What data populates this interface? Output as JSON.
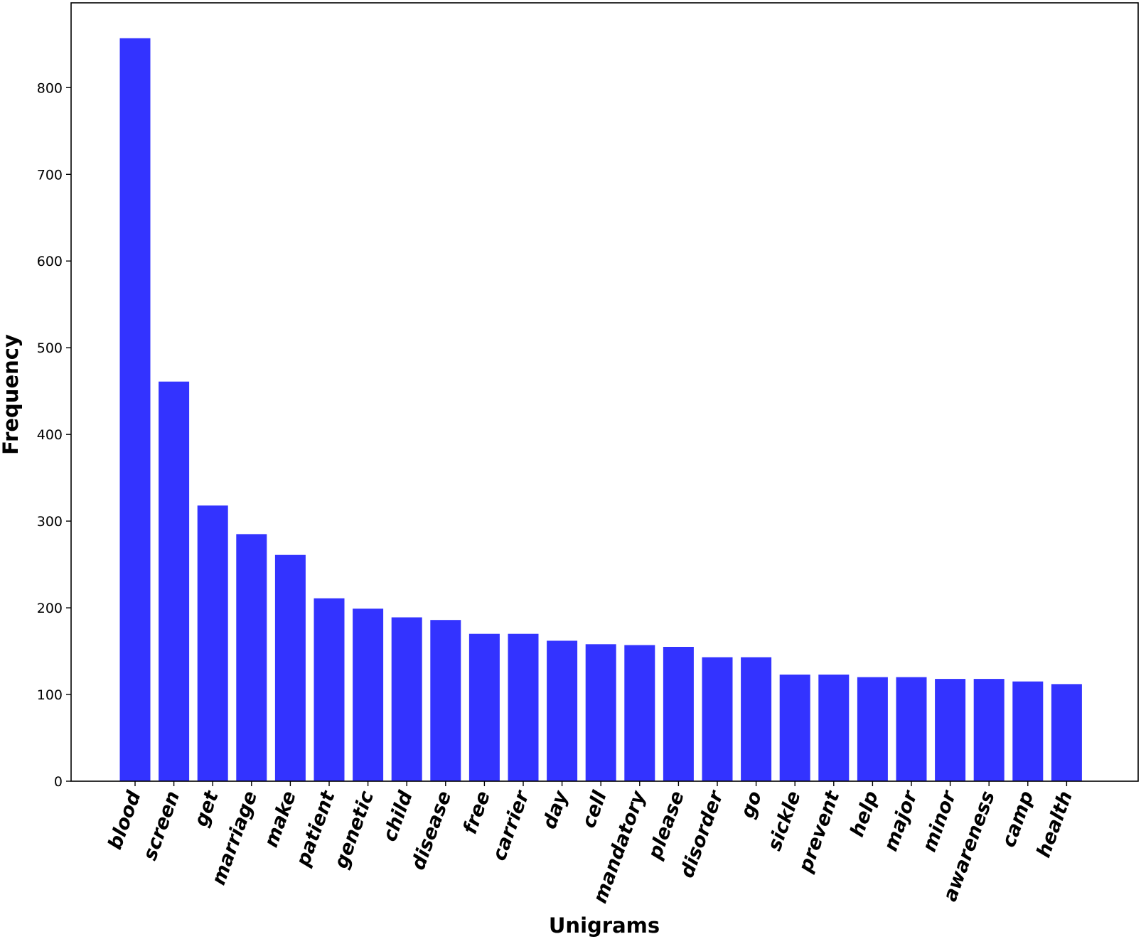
{
  "chart_data": {
    "type": "bar",
    "title": "",
    "xlabel": "Unigrams",
    "ylabel": "Frequency",
    "ylim": [
      0,
      860
    ],
    "yticks": [
      0,
      100,
      200,
      300,
      400,
      500,
      600,
      700,
      800
    ],
    "grid": false,
    "bar_color": "#3333ff",
    "categories": [
      "blood",
      "screen",
      "get",
      "marriage",
      "make",
      "patient",
      "genetic",
      "child",
      "disease",
      "free",
      "carrier",
      "day",
      "cell",
      "mandatory",
      "please",
      "disorder",
      "go",
      "sickle",
      "prevent",
      "help",
      "major",
      "minor",
      "awareness",
      "camp",
      "health"
    ],
    "values": [
      857,
      461,
      318,
      285,
      261,
      211,
      199,
      189,
      186,
      170,
      170,
      162,
      158,
      157,
      155,
      143,
      143,
      123,
      123,
      120,
      120,
      118,
      118,
      115,
      112
    ]
  }
}
